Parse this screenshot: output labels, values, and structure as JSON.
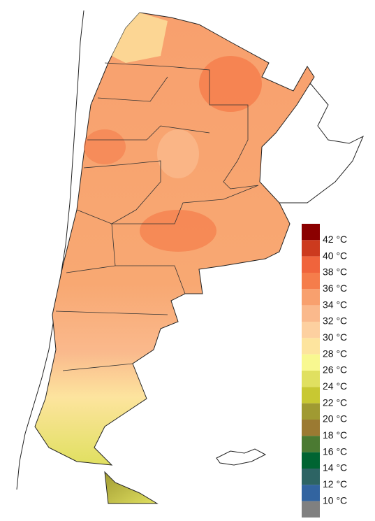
{
  "legend": {
    "items": [
      {
        "label": "42 °C",
        "color": "#8b0000"
      },
      {
        "label": "40 °C",
        "color": "#cc3a1e"
      },
      {
        "label": "38 °C",
        "color": "#f0643c"
      },
      {
        "label": "36 °C",
        "color": "#f57d4b"
      },
      {
        "label": "34 °C",
        "color": "#f8a06e"
      },
      {
        "label": "32 °C",
        "color": "#fab98c"
      },
      {
        "label": "30 °C",
        "color": "#fdd0a0"
      },
      {
        "label": "28 °C",
        "color": "#fde49e"
      },
      {
        "label": "26 °C",
        "color": "#f8f890"
      },
      {
        "label": "24 °C",
        "color": "#e0e060"
      },
      {
        "label": "22 °C",
        "color": "#c8c832"
      },
      {
        "label": "20 °C",
        "color": "#a09a32"
      },
      {
        "label": "18 °C",
        "color": "#9b7a32"
      },
      {
        "label": "16 °C",
        "color": "#4b7a32"
      },
      {
        "label": "14 °C",
        "color": "#006432"
      },
      {
        "label": "12 °C",
        "color": "#2d6464"
      },
      {
        "label": "10 °C",
        "color": "#3264a0"
      }
    ],
    "lowest_color": "#808080"
  }
}
